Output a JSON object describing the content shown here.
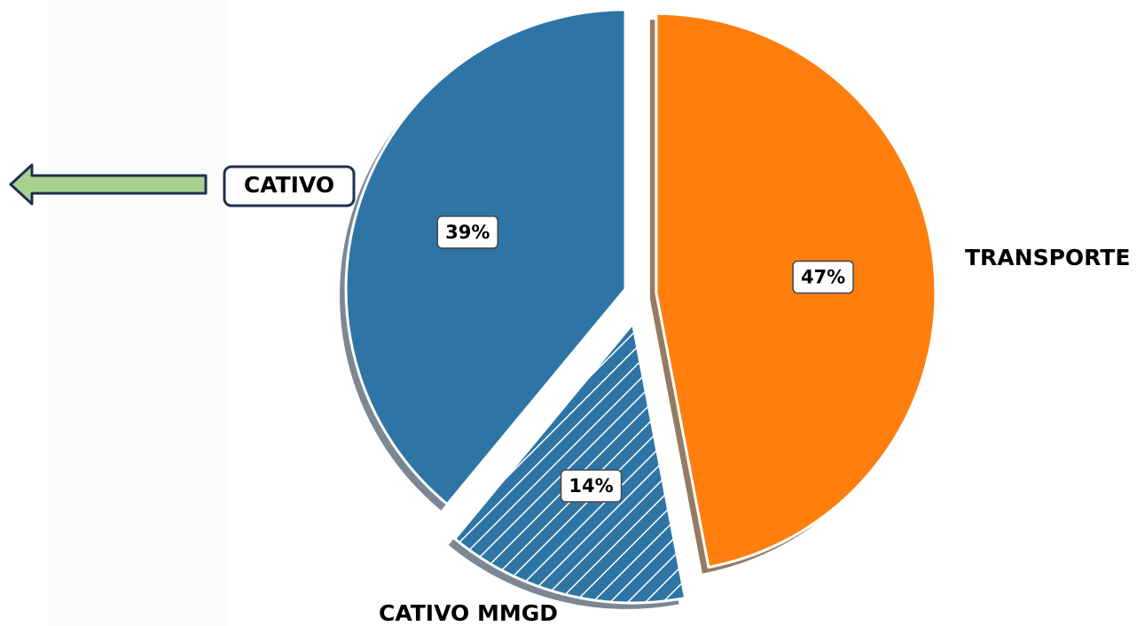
{
  "chart_data": {
    "type": "pie",
    "categories": [
      "TRANSPORTE",
      "CATIVO",
      "CATIVO MMGD"
    ],
    "values": [
      47,
      39,
      14
    ],
    "value_labels": [
      "47%",
      "39%",
      "14%"
    ],
    "colors": [
      "#ff7f0e",
      "#2e75a5",
      "#2e75a5"
    ]
  }
}
